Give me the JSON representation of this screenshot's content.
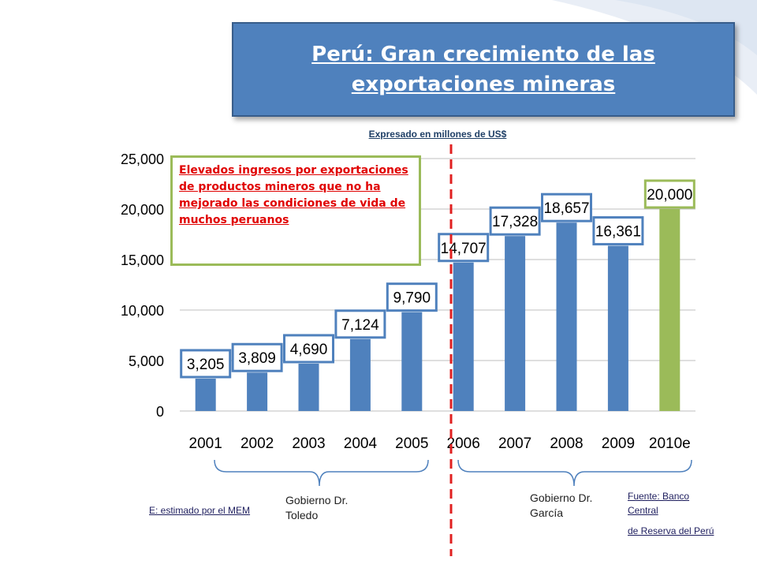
{
  "title": "Perú: Gran crecimiento de las exportaciones mineras",
  "subtitle": "Expresado en millones de US$",
  "note": "Elevados ingresos por exportaciones de productos mineros que no ha mejorado las condiciones de vida de muchos peruanos",
  "groups": {
    "toledo": "Gobierno Dr. Toledo",
    "garcia": "Gobierno Dr. García"
  },
  "footnotes": {
    "estimate": "E: estimado por el MEM",
    "source_line1": "Fuente: Banco Central",
    "source_line2": "de Reserva del Perú"
  },
  "chart_data": {
    "type": "bar",
    "categories": [
      "2001",
      "2002",
      "2003",
      "2004",
      "2005",
      "2006",
      "2007",
      "2008",
      "2009",
      "2010e"
    ],
    "values": [
      3205,
      3809,
      4690,
      7124,
      9790,
      14707,
      17328,
      18657,
      16361,
      20000
    ],
    "labels": [
      "3,205",
      "3,809",
      "4,690",
      "7,124",
      "9,790",
      "14,707",
      "17,328",
      "18,657",
      "16,361",
      "20,000"
    ],
    "ylim": [
      0,
      25000
    ],
    "yticks": [
      "0",
      "5,000",
      "10,000",
      "15,000",
      "20,000",
      "25,000"
    ],
    "grid": true,
    "colors": {
      "bar": "#4f81bd",
      "bar_estimate": "#9bbb59",
      "label_border": "#4f81bd",
      "label_border_estimate": "#9bbb59",
      "divider": "#e02020"
    }
  }
}
